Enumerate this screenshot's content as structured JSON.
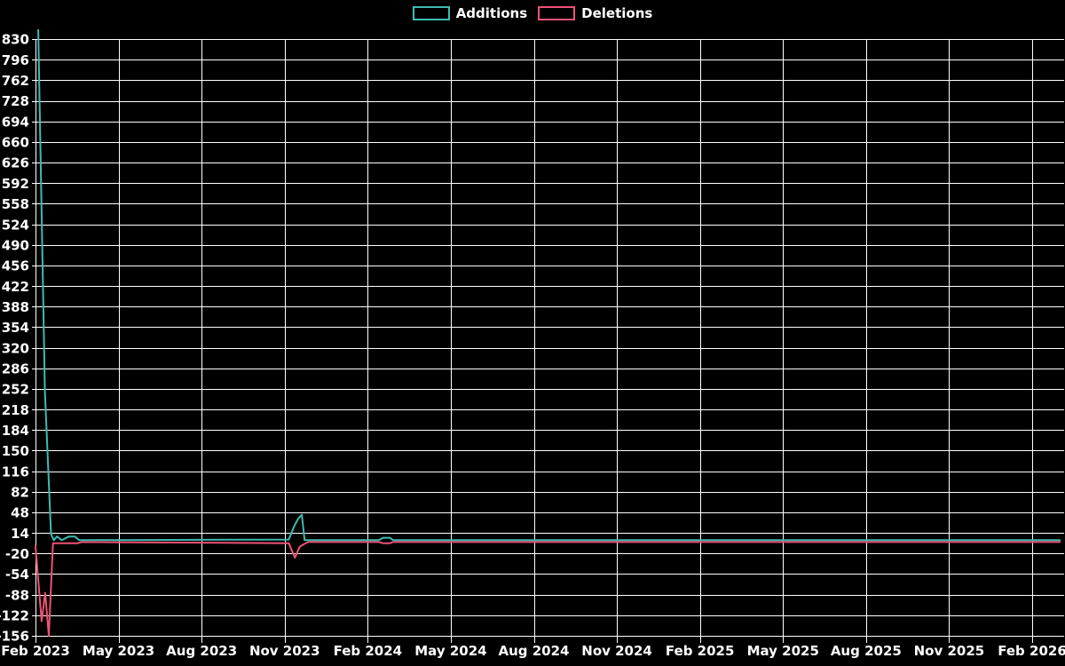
{
  "colors": {
    "background": "#000000",
    "grid": "#ffffff",
    "text": "#ffffff",
    "additions": "#3dbcb1",
    "deletions": "#ee5276"
  },
  "legend": {
    "items": [
      {
        "label": "Additions",
        "color": "#3dbcb1"
      },
      {
        "label": "Deletions",
        "color": "#ee5276"
      }
    ]
  },
  "chart_data": {
    "type": "line",
    "title": "",
    "xlabel": "",
    "ylabel": "",
    "grid": true,
    "legend_position": "top-center",
    "x_axis": {
      "unit": "months since 2023-02",
      "range": [
        0,
        37
      ],
      "tick_month_offsets": [
        0,
        3,
        6,
        9,
        12,
        15,
        18,
        21,
        24,
        27,
        30,
        33,
        36
      ],
      "tick_labels": [
        "Feb 2023",
        "May 2023",
        "Aug 2023",
        "Nov 2023",
        "Feb 2024",
        "May 2024",
        "Aug 2024",
        "Nov 2024",
        "Feb 2025",
        "May 2025",
        "Aug 2025",
        "Nov 2025",
        "Feb 2026"
      ]
    },
    "y_axis": {
      "range": [
        -156,
        830
      ],
      "tick_step": 34,
      "ticks": [
        830,
        796,
        762,
        728,
        694,
        660,
        626,
        592,
        558,
        524,
        490,
        456,
        422,
        388,
        354,
        320,
        286,
        252,
        218,
        184,
        150,
        116,
        82,
        48,
        14,
        -20,
        -54,
        -88,
        -122,
        -156
      ]
    },
    "series": [
      {
        "name": "Additions",
        "color": "#3dbcb1",
        "points": [
          [
            0.1,
            845
          ],
          [
            0.34,
            248
          ],
          [
            0.56,
            12
          ],
          [
            0.66,
            2
          ],
          [
            0.78,
            8
          ],
          [
            0.95,
            2
          ],
          [
            1.2,
            8
          ],
          [
            1.42,
            8
          ],
          [
            1.58,
            2
          ],
          [
            9.15,
            3
          ],
          [
            9.35,
            26
          ],
          [
            9.5,
            38
          ],
          [
            9.62,
            44
          ],
          [
            9.72,
            2
          ],
          [
            12.4,
            2
          ],
          [
            12.55,
            6
          ],
          [
            12.8,
            6
          ],
          [
            12.92,
            2
          ],
          [
            37.0,
            2
          ]
        ]
      },
      {
        "name": "Deletions",
        "color": "#ee5276",
        "points": [
          [
            0.0,
            -8
          ],
          [
            0.22,
            -132
          ],
          [
            0.35,
            -85
          ],
          [
            0.48,
            -156
          ],
          [
            0.63,
            -3
          ],
          [
            1.54,
            -3
          ],
          [
            1.66,
            -1
          ],
          [
            9.15,
            -3
          ],
          [
            9.37,
            -27
          ],
          [
            9.54,
            -9
          ],
          [
            9.72,
            -4
          ],
          [
            9.85,
            -1
          ],
          [
            12.4,
            -1
          ],
          [
            12.55,
            -3
          ],
          [
            12.8,
            -3
          ],
          [
            12.92,
            -1
          ],
          [
            37.0,
            -1
          ]
        ]
      }
    ]
  }
}
